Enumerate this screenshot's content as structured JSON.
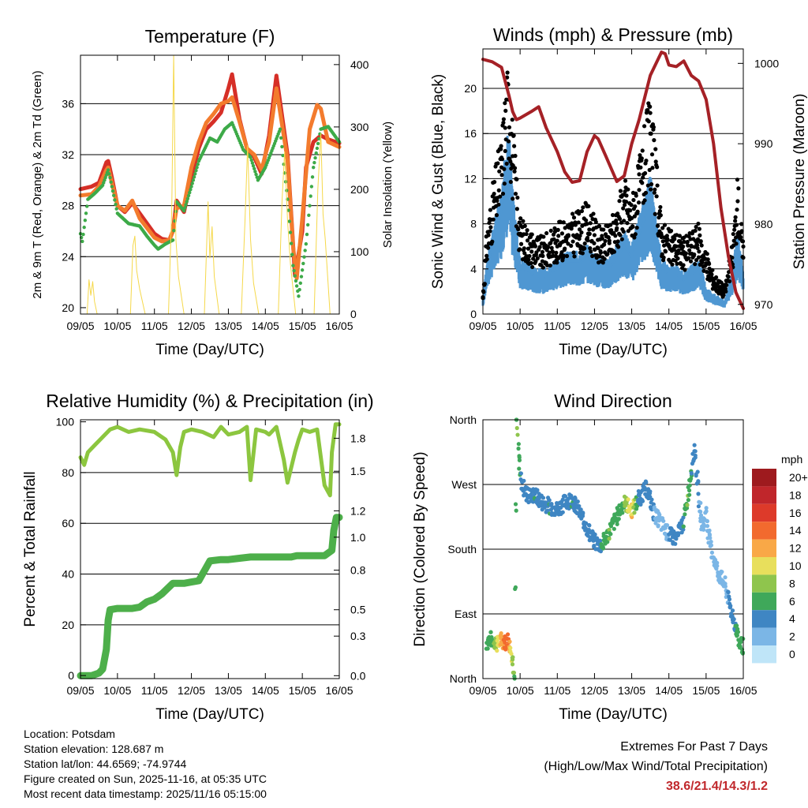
{
  "chart_data": [
    {
      "type": "line",
      "title": "Temperature (F)",
      "xlabel": "Time (Day/UTC)",
      "ylabel": "2m & 9m T (Red, Orange) & 2m Td (Green)",
      "ylabel_right": "Solar Insolation (Yellow)",
      "xlim": [
        0,
        7
      ],
      "ylim": [
        19.5,
        39.8
      ],
      "y2lim": [
        0,
        415
      ],
      "xticks": [
        "09/05",
        "10/05",
        "11/05",
        "12/05",
        "13/05",
        "14/05",
        "15/05",
        "16/05"
      ],
      "yticks": [
        20,
        24,
        28,
        32,
        36
      ],
      "y2ticks": [
        0,
        100,
        200,
        300,
        400
      ],
      "grid_y": [
        24,
        28,
        32,
        36
      ],
      "series": [
        {
          "name": "2m T",
          "axis": "left",
          "color": "#d62f27",
          "x": [
            0,
            0.3,
            0.5,
            0.7,
            0.75,
            0.85,
            1.0,
            1.2,
            1.4,
            1.6,
            2.0,
            2.2,
            2.4,
            2.5,
            2.6,
            2.8,
            3.0,
            3.2,
            3.4,
            3.6,
            3.8,
            4.0,
            4.1,
            4.3,
            4.5,
            4.7,
            4.9,
            5.0,
            5.1,
            5.3,
            5.6,
            5.75,
            5.8,
            6.0,
            6.1,
            6.3,
            6.5,
            6.7,
            7.0
          ],
          "values": [
            29.3,
            29.5,
            29.8,
            31.4,
            31.5,
            30.2,
            28.0,
            27.5,
            28.2,
            27.4,
            25.8,
            25.4,
            25.3,
            26.0,
            28.4,
            27.5,
            30.2,
            32.5,
            34.0,
            34.6,
            35.3,
            37.2,
            38.3,
            34.8,
            32.5,
            31.8,
            30.5,
            32.0,
            33.5,
            38.2,
            32.0,
            25.0,
            22.5,
            26.0,
            31.0,
            33.0,
            33.5,
            33.2,
            32.9
          ]
        },
        {
          "name": "9m T",
          "axis": "left",
          "color": "#f37b2d",
          "x": [
            0,
            0.3,
            0.5,
            0.7,
            0.75,
            0.85,
            1.0,
            1.2,
            1.4,
            1.6,
            2.0,
            2.2,
            2.4,
            2.5,
            2.6,
            2.8,
            3.0,
            3.2,
            3.4,
            3.6,
            3.8,
            4.0,
            4.1,
            4.3,
            4.5,
            4.7,
            4.9,
            5.0,
            5.1,
            5.3,
            5.6,
            5.75,
            5.85,
            6.0,
            6.2,
            6.4,
            6.5,
            6.7,
            7.0
          ],
          "values": [
            28.8,
            28.9,
            29.5,
            30.8,
            31.0,
            29.8,
            28.0,
            27.6,
            28.4,
            27.0,
            25.5,
            25.2,
            25.3,
            26.0,
            27.8,
            28.0,
            31.0,
            33.0,
            34.5,
            35.2,
            36.0,
            36.2,
            36.5,
            34.6,
            32.5,
            32.0,
            30.8,
            32.0,
            33.0,
            37.2,
            31.6,
            24.8,
            22.3,
            27.0,
            34.0,
            35.9,
            35.6,
            33.0,
            32.6
          ]
        },
        {
          "name": "2m Td",
          "axis": "left",
          "color": "#3daa48",
          "x": [
            0,
            0.05,
            0.2,
            0.4,
            0.6,
            0.75,
            0.8,
            1.0,
            1.3,
            1.6,
            1.8,
            2.0,
            2.1,
            2.3,
            2.5,
            2.6,
            2.8,
            3.0,
            3.2,
            3.5,
            3.7,
            3.9,
            4.1,
            4.4,
            4.6,
            4.8,
            5.0,
            5.2,
            5.4,
            5.6,
            5.75,
            5.9,
            6.1,
            6.3,
            6.5,
            6.7,
            7.0
          ],
          "values": [
            25.8,
            25.2,
            28.5,
            29.0,
            29.6,
            30.8,
            30.2,
            27.4,
            26.6,
            26.4,
            25.6,
            24.9,
            24.6,
            25.0,
            25.3,
            28.3,
            27.6,
            29.5,
            31.5,
            33.3,
            33.0,
            34.0,
            34.5,
            32.4,
            31.8,
            30.0,
            31.0,
            32.5,
            34.0,
            28.5,
            23.3,
            20.9,
            25.0,
            31.0,
            34.0,
            34.2,
            33.0
          ]
        },
        {
          "name": "Solar Insolation",
          "axis": "right",
          "color": "#f5d84a",
          "x": [
            0.18,
            0.23,
            0.28,
            0.33,
            0.38,
            0.45,
            1.35,
            1.42,
            1.47,
            1.52,
            1.6,
            1.75,
            2.38,
            2.47,
            2.52,
            2.58,
            2.65,
            2.8,
            3.35,
            3.45,
            3.5,
            3.56,
            3.62,
            3.75,
            4.35,
            4.45,
            4.52,
            4.6,
            4.68,
            4.82,
            5.35,
            5.45,
            5.52,
            5.6,
            5.68,
            5.82,
            6.32,
            6.42,
            6.5,
            6.56,
            6.62,
            6.75
          ],
          "values": [
            0,
            55,
            30,
            52,
            20,
            0,
            0,
            110,
            125,
            70,
            40,
            0,
            0,
            170,
            415,
            120,
            60,
            0,
            0,
            180,
            90,
            140,
            60,
            0,
            0,
            150,
            270,
            120,
            50,
            0,
            0,
            180,
            260,
            150,
            80,
            0,
            0,
            200,
            290,
            160,
            120,
            0
          ]
        }
      ]
    },
    {
      "type": "line",
      "title": "Winds (mph) & Pressure (mb)",
      "xlabel": "Time (Day/UTC)",
      "ylabel": "Sonic Wind & Gust (Blue, Black)",
      "ylabel_right": "Station Pressure (Maroon)",
      "xlim": [
        0,
        7
      ],
      "ylim": [
        0,
        23.5
      ],
      "y2lim": [
        968.8,
        1001.8
      ],
      "xticks": [
        "09/05",
        "10/05",
        "11/05",
        "12/05",
        "13/05",
        "14/05",
        "15/05",
        "16/05"
      ],
      "yticks": [
        0,
        4,
        8,
        12,
        16,
        20
      ],
      "y2ticks": [
        970,
        980,
        990,
        1000
      ],
      "grid_y": [
        4,
        8,
        12,
        16,
        20
      ],
      "series": [
        {
          "name": "Sonic Wind",
          "axis": "left",
          "color": "#4f97d2",
          "x": [
            0,
            0.1,
            0.3,
            0.5,
            0.6,
            0.7,
            0.8,
            1.0,
            1.3,
            1.6,
            2.0,
            2.3,
            2.6,
            2.8,
            3.0,
            3.2,
            3.4,
            3.6,
            3.8,
            4.0,
            4.2,
            4.5,
            4.8,
            5.0,
            5.2,
            5.4,
            5.6,
            5.8,
            6.0,
            6.2,
            6.5,
            6.7,
            6.85,
            7.0
          ],
          "values": [
            1.0,
            4.0,
            6.5,
            9.0,
            11.5,
            13.5,
            9.0,
            4.0,
            3.5,
            3.2,
            4.0,
            4.5,
            4.5,
            5.0,
            4.5,
            4.0,
            4.0,
            5.0,
            6.0,
            5.0,
            7.0,
            10.0,
            4.0,
            3.5,
            3.5,
            3.0,
            3.5,
            4.0,
            2.0,
            1.5,
            1.0,
            3.0,
            6.0,
            3.0
          ]
        },
        {
          "name": "Gust",
          "axis": "left",
          "color": "#000000",
          "x": [
            0,
            0.1,
            0.3,
            0.5,
            0.6,
            0.7,
            0.8,
            1.0,
            1.3,
            1.6,
            2.0,
            2.3,
            2.6,
            2.8,
            3.0,
            3.2,
            3.4,
            3.6,
            3.8,
            4.0,
            4.2,
            4.5,
            4.8,
            5.0,
            5.2,
            5.4,
            5.6,
            5.8,
            6.0,
            6.2,
            6.5,
            6.7,
            6.85,
            7.0
          ],
          "values": [
            1.5,
            6.0,
            10.0,
            13.0,
            16.5,
            19.0,
            14.0,
            7.0,
            6.0,
            5.5,
            6.5,
            7.0,
            7.5,
            8.0,
            7.0,
            6.0,
            6.5,
            8.0,
            10.0,
            8.5,
            11.0,
            16.0,
            7.0,
            6.0,
            6.0,
            5.5,
            6.0,
            6.5,
            4.5,
            3.0,
            2.0,
            5.0,
            10.0,
            5.0
          ]
        },
        {
          "name": "Station Pressure",
          "axis": "right",
          "color": "#a52126",
          "x": [
            0,
            0.25,
            0.5,
            0.7,
            0.8,
            0.9,
            1.0,
            1.3,
            1.5,
            1.7,
            2.0,
            2.2,
            2.4,
            2.6,
            2.8,
            3.0,
            3.1,
            3.3,
            3.6,
            3.8,
            4.0,
            4.2,
            4.5,
            4.8,
            4.9,
            5.0,
            5.2,
            5.4,
            5.6,
            5.8,
            6.0,
            6.2,
            6.4,
            6.6,
            6.8,
            7.0
          ],
          "values": [
            1000.5,
            1000.2,
            999.5,
            996.0,
            994.0,
            993.0,
            993.2,
            994.0,
            994.6,
            992.0,
            989.0,
            986.5,
            985.2,
            985.4,
            989.0,
            991.0,
            990.6,
            988.5,
            985.3,
            986.0,
            990.0,
            993.0,
            998.5,
            1001.4,
            1001.2,
            999.8,
            999.6,
            1000.3,
            998.5,
            997.8,
            995.5,
            990.0,
            982.0,
            976.0,
            971.5,
            969.5
          ]
        }
      ]
    },
    {
      "type": "line",
      "title": "Relative Humidity (%) & Precipitation (in)",
      "xlabel": "Time (Day/UTC)",
      "ylabel": "Percent & Total Rainfall",
      "xlim": [
        0,
        7
      ],
      "ylim": [
        -1.2,
        100.8
      ],
      "y2lim": [
        -0.022,
        1.94
      ],
      "xticks": [
        "09/05",
        "10/05",
        "11/05",
        "12/05",
        "13/05",
        "14/05",
        "15/05",
        "16/05"
      ],
      "yticks": [
        0,
        20,
        40,
        60,
        80,
        100
      ],
      "y2ticks": [
        0.0,
        0.3,
        0.5,
        0.8,
        1.0,
        1.2,
        1.5,
        1.8
      ],
      "y2tick_positions": [
        0.0,
        0.3,
        0.5,
        0.8,
        1.05,
        1.25,
        1.55,
        1.8
      ],
      "grid_y": [
        20,
        40,
        60,
        80
      ],
      "series": [
        {
          "name": "Relative Humidity",
          "axis": "left",
          "color": "#8cc63f",
          "x": [
            0,
            0.1,
            0.2,
            0.4,
            0.6,
            0.8,
            1.0,
            1.3,
            1.6,
            2.0,
            2.3,
            2.5,
            2.6,
            2.7,
            2.8,
            3.0,
            3.3,
            3.6,
            3.8,
            4.0,
            4.3,
            4.5,
            4.6,
            4.75,
            5.0,
            5.1,
            5.3,
            5.5,
            5.6,
            5.8,
            5.9,
            6.0,
            6.2,
            6.4,
            6.6,
            6.75,
            6.8,
            6.9,
            7.0
          ],
          "values": [
            86,
            83,
            88,
            91,
            94,
            97,
            98,
            96,
            97,
            96,
            93,
            88,
            79,
            90,
            96,
            97,
            96,
            94,
            98,
            95,
            96,
            98,
            77,
            97,
            96,
            95,
            98,
            85,
            76,
            88,
            93,
            97,
            96,
            97,
            75,
            71,
            88,
            99,
            99
          ]
        },
        {
          "name": "Total Rainfall",
          "axis": "right",
          "color": "#4daf4a",
          "x": [
            0,
            0.3,
            0.5,
            0.6,
            0.7,
            0.75,
            0.8,
            1.0,
            1.4,
            1.6,
            1.8,
            2.0,
            2.2,
            2.5,
            2.8,
            3.0,
            3.2,
            3.5,
            3.8,
            4.0,
            4.3,
            4.6,
            5.0,
            5.3,
            5.5,
            5.7,
            5.85,
            6.0,
            6.3,
            6.6,
            6.8,
            6.85,
            6.92,
            7.0
          ],
          "values": [
            0.0,
            0.0,
            0.02,
            0.05,
            0.2,
            0.42,
            0.5,
            0.51,
            0.51,
            0.52,
            0.56,
            0.58,
            0.62,
            0.7,
            0.7,
            0.71,
            0.72,
            0.87,
            0.88,
            0.88,
            0.89,
            0.9,
            0.9,
            0.9,
            0.9,
            0.9,
            0.91,
            0.91,
            0.91,
            0.91,
            0.95,
            1.1,
            1.2,
            1.2
          ]
        }
      ]
    },
    {
      "type": "scatter",
      "title": "Wind Direction",
      "xlabel": "Time (Day/UTC)",
      "ylabel": "Direction (Colored By Speed)",
      "xlim": [
        0,
        7
      ],
      "ylim": [
        0,
        360
      ],
      "xticks": [
        "09/05",
        "10/05",
        "11/05",
        "12/05",
        "13/05",
        "14/05",
        "15/05",
        "16/05"
      ],
      "yticks": [
        "North",
        "East",
        "South",
        "West",
        "North"
      ],
      "ytick_values": [
        0,
        90,
        180,
        270,
        360
      ],
      "grid_y": [
        90,
        180,
        270
      ],
      "x": [
        0.1,
        0.2,
        0.3,
        0.4,
        0.5,
        0.6,
        0.7,
        0.75,
        0.8,
        0.85,
        0.9,
        0.92,
        0.95,
        1.0,
        1.1,
        1.2,
        1.4,
        1.6,
        1.8,
        2.0,
        2.2,
        2.4,
        2.6,
        2.8,
        3.0,
        3.2,
        3.4,
        3.6,
        3.8,
        4.0,
        4.2,
        4.4,
        4.6,
        4.8,
        5.0,
        5.2,
        5.4,
        5.5,
        5.6,
        5.7,
        5.8,
        5.9,
        6.0,
        6.1,
        6.2,
        6.3,
        6.5,
        6.6,
        6.7,
        6.8,
        6.9,
        7.0
      ],
      "values": [
        50,
        55,
        52,
        48,
        55,
        50,
        55,
        40,
        25,
        10,
        358,
        340,
        320,
        280,
        265,
        255,
        255,
        245,
        240,
        235,
        245,
        250,
        230,
        210,
        190,
        185,
        205,
        225,
        245,
        235,
        250,
        265,
        230,
        215,
        200,
        195,
        220,
        250,
        290,
        320,
        250,
        210,
        230,
        190,
        170,
        150,
        130,
        110,
        90,
        70,
        50,
        45
      ],
      "speeds": [
        5,
        6,
        7,
        10,
        12,
        14,
        13,
        10,
        8,
        6,
        5,
        7,
        6,
        5,
        4,
        4,
        5,
        4,
        5,
        4,
        4,
        5,
        4,
        3,
        4,
        5,
        7,
        6,
        7,
        11,
        3,
        3,
        3,
        2,
        3,
        4,
        5,
        7,
        5,
        4,
        3,
        2,
        2,
        1,
        1,
        1,
        2,
        3,
        4,
        5,
        6,
        5
      ],
      "colorbar": {
        "unit": "mph",
        "labels": [
          "20+",
          "18",
          "16",
          "14",
          "12",
          "10",
          "8",
          "6",
          "4",
          "2",
          "0"
        ],
        "colors": [
          "#9e1a1e",
          "#c0262b",
          "#dd3a2a",
          "#f26a2e",
          "#f9a847",
          "#e8df5c",
          "#8fc54d",
          "#3fa85a",
          "#3f86c3",
          "#7bb6e6",
          "#bfe5f8"
        ]
      }
    }
  ],
  "station_info": {
    "location": "Location: Potsdam",
    "elevation": "Station elevation: 128.687 m",
    "latlon": "Station lat/lon: 44.6569; -74.9744",
    "created": "Figure created on Sun, 2025-11-16, at 05:35 UTC",
    "recent": "Most recent data timestamp: 2025/11/16 05:15:00"
  },
  "extremes": {
    "heading": "Extremes For Past 7 Days",
    "subheading": "(High/Low/Max Wind/Total Precipitation)",
    "values": "38.6/21.4/14.3/1.2"
  }
}
